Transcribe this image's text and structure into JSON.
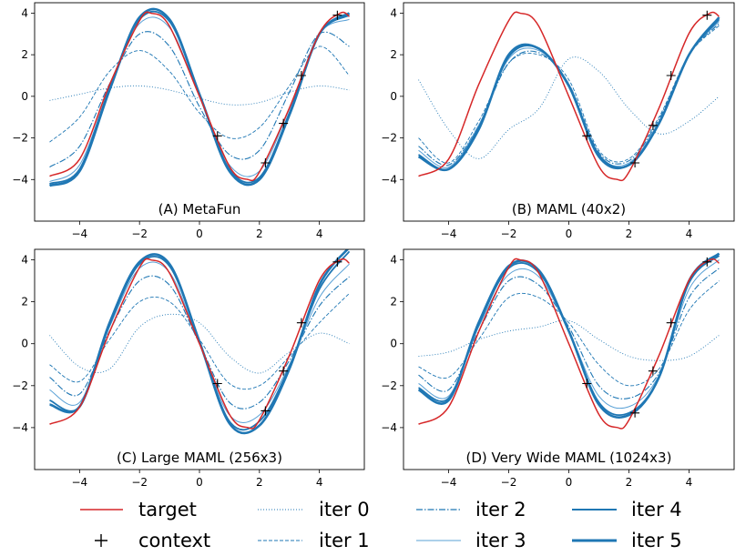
{
  "chart_data": [
    {
      "type": "line",
      "title": "(A) MetaFun",
      "xlim": [
        -5.5,
        5.5
      ],
      "ylim": [
        -6,
        4.5
      ],
      "xticks": [
        -4,
        -2,
        0,
        2,
        4
      ],
      "yticks": [
        -4,
        -2,
        0,
        2,
        4
      ],
      "series": [
        {
          "name": "target",
          "x": [
            -5,
            -4,
            -3,
            -2,
            -1.6,
            -1,
            0,
            1,
            1.6,
            2,
            3,
            4,
            4.7,
            5
          ],
          "y": [
            -3.84,
            -3.02,
            0.56,
            3.64,
            3.99,
            3.37,
            0.0,
            -3.37,
            -3.99,
            -3.64,
            -0.56,
            3.03,
            4.0,
            3.84
          ]
        },
        {
          "name": "iter 0",
          "x": [
            -5,
            -4,
            -3,
            -2,
            -1,
            0,
            1,
            2,
            3,
            4,
            5
          ],
          "y": [
            -0.2,
            0.1,
            0.4,
            0.5,
            0.3,
            -0.1,
            -0.4,
            -0.3,
            0.2,
            0.5,
            0.3
          ]
        },
        {
          "name": "iter 1",
          "x": [
            -5,
            -4,
            -3,
            -2,
            -1,
            0,
            1,
            2,
            3,
            4,
            5
          ],
          "y": [
            -2.2,
            -1.0,
            1.2,
            2.2,
            1.2,
            -0.8,
            -2.0,
            -1.5,
            0.5,
            2.4,
            1.0
          ]
        },
        {
          "name": "iter 2",
          "x": [
            -5,
            -4,
            -3,
            -2,
            -1,
            0,
            1,
            2,
            3,
            4,
            5
          ],
          "y": [
            -3.4,
            -2.4,
            0.6,
            3.0,
            2.4,
            -0.5,
            -2.8,
            -2.6,
            0.2,
            3.0,
            2.4
          ]
        },
        {
          "name": "iter 3",
          "x": [
            -5,
            -4,
            -3,
            -2,
            -1,
            0,
            1,
            2,
            3,
            4,
            5
          ],
          "y": [
            -4.1,
            -3.3,
            0.4,
            3.5,
            3.3,
            0.0,
            -3.3,
            -3.6,
            -0.6,
            3.0,
            3.7
          ]
        },
        {
          "name": "iter 4",
          "x": [
            -5,
            -4,
            -3,
            -2,
            -1,
            0,
            1,
            2,
            3,
            4,
            5
          ],
          "y": [
            -4.2,
            -3.5,
            0.4,
            3.7,
            3.6,
            0.1,
            -3.5,
            -3.9,
            -0.8,
            3.0,
            3.9
          ]
        },
        {
          "name": "iter 5",
          "x": [
            -5,
            -4,
            -3,
            -2,
            -1,
            0,
            1,
            2,
            3,
            4,
            5
          ],
          "y": [
            -4.3,
            -3.6,
            0.3,
            3.8,
            3.7,
            0.1,
            -3.6,
            -4.0,
            -0.9,
            3.0,
            4.0
          ]
        }
      ],
      "context": {
        "x": [
          0.6,
          2.2,
          2.8,
          3.4,
          4.6
        ],
        "y": [
          -1.9,
          -3.2,
          -1.3,
          1.0,
          3.9
        ]
      }
    },
    {
      "type": "line",
      "title": "(B) MAML (40x2)",
      "xlim": [
        -5.5,
        5.5
      ],
      "ylim": [
        -6,
        4.5
      ],
      "xticks": [
        -4,
        -2,
        0,
        2,
        4
      ],
      "yticks": [
        -4,
        -2,
        0,
        2,
        4
      ],
      "series": [
        {
          "name": "target",
          "x": [
            -5,
            -4,
            -3,
            -2,
            -1.6,
            -1,
            0,
            1,
            1.6,
            2,
            3,
            4,
            4.7,
            5
          ],
          "y": [
            -3.84,
            -3.02,
            0.56,
            3.64,
            3.99,
            3.37,
            0.0,
            -3.37,
            -3.99,
            -3.64,
            -0.56,
            3.03,
            4.0,
            3.84
          ]
        },
        {
          "name": "iter 0",
          "x": [
            -5,
            -4,
            -3,
            -2,
            -1,
            0,
            1,
            2,
            3,
            4,
            5
          ],
          "y": [
            0.8,
            -1.6,
            -3.0,
            -1.6,
            -0.6,
            1.8,
            1.2,
            -0.6,
            -1.8,
            -1.2,
            0.0
          ]
        },
        {
          "name": "iter 1",
          "x": [
            -5,
            -4,
            -3,
            -2,
            -1,
            0,
            1,
            2,
            3,
            4,
            5
          ],
          "y": [
            -2.0,
            -3.2,
            -1.2,
            1.6,
            2.0,
            0.8,
            -2.6,
            -3.0,
            -1.0,
            2.0,
            3.4
          ]
        },
        {
          "name": "iter 2",
          "x": [
            -5,
            -4,
            -3,
            -2,
            -1,
            0,
            1,
            2,
            3,
            4,
            5
          ],
          "y": [
            -2.4,
            -3.3,
            -1.4,
            1.6,
            2.1,
            0.6,
            -2.7,
            -3.1,
            -1.1,
            2.0,
            3.5
          ]
        },
        {
          "name": "iter 3",
          "x": [
            -5,
            -4,
            -3,
            -2,
            -1,
            0,
            1,
            2,
            3,
            4,
            5
          ],
          "y": [
            -2.6,
            -3.4,
            -1.4,
            1.8,
            2.2,
            0.6,
            -2.8,
            -3.2,
            -1.2,
            2.0,
            3.6
          ]
        },
        {
          "name": "iter 4",
          "x": [
            -5,
            -4,
            -3,
            -2,
            -1,
            0,
            1,
            2,
            3,
            4,
            5
          ],
          "y": [
            -2.8,
            -3.5,
            -1.5,
            1.9,
            2.3,
            0.5,
            -2.8,
            -3.3,
            -1.3,
            2.0,
            3.7
          ]
        },
        {
          "name": "iter 5",
          "x": [
            -5,
            -4,
            -3,
            -2,
            -1,
            0,
            1,
            2,
            3,
            4,
            5
          ],
          "y": [
            -2.9,
            -3.5,
            -1.6,
            2.0,
            2.3,
            0.5,
            -2.9,
            -3.3,
            -1.3,
            2.0,
            3.8
          ]
        }
      ],
      "context": {
        "x": [
          0.6,
          2.2,
          2.8,
          3.4,
          4.6
        ],
        "y": [
          -1.9,
          -3.2,
          -1.4,
          1.0,
          3.9
        ]
      }
    },
    {
      "type": "line",
      "title": "(C) Large MAML (256x3)",
      "xlim": [
        -5.5,
        5.5
      ],
      "ylim": [
        -6,
        4.5
      ],
      "xticks": [
        -4,
        -2,
        0,
        2,
        4
      ],
      "yticks": [
        -4,
        -2,
        0,
        2,
        4
      ],
      "series": [
        {
          "name": "target",
          "x": [
            -5,
            -4,
            -3,
            -2,
            -1.6,
            -1,
            0,
            1,
            1.6,
            2,
            3,
            4,
            4.7,
            5
          ],
          "y": [
            -3.84,
            -3.02,
            0.56,
            3.64,
            3.99,
            3.37,
            0.0,
            -3.37,
            -3.99,
            -3.64,
            -0.56,
            3.03,
            4.0,
            3.84
          ]
        },
        {
          "name": "iter 0",
          "x": [
            -5,
            -4,
            -3,
            -2,
            -1,
            0,
            1,
            2,
            3,
            4,
            5
          ],
          "y": [
            0.4,
            -1.1,
            -1.2,
            0.8,
            1.4,
            1.0,
            -0.6,
            -1.4,
            -0.4,
            0.5,
            0.0
          ]
        },
        {
          "name": "iter 1",
          "x": [
            -5,
            -4,
            -3,
            -2,
            -1,
            0,
            1,
            2,
            3,
            4,
            5
          ],
          "y": [
            -1.0,
            -1.8,
            0.2,
            2.0,
            2.0,
            0.2,
            -1.9,
            -2.0,
            -0.6,
            1.0,
            2.4
          ]
        },
        {
          "name": "iter 2",
          "x": [
            -5,
            -4,
            -3,
            -2,
            -1,
            0,
            1,
            2,
            3,
            4,
            5
          ],
          "y": [
            -1.6,
            -2.4,
            0.6,
            3.0,
            2.8,
            0.0,
            -2.8,
            -2.8,
            -0.8,
            1.8,
            3.2
          ]
        },
        {
          "name": "iter 3",
          "x": [
            -5,
            -4,
            -3,
            -2,
            -1,
            0,
            1,
            2,
            3,
            4,
            5
          ],
          "y": [
            -2.2,
            -2.8,
            0.8,
            3.6,
            3.4,
            0.0,
            -3.4,
            -3.4,
            -1.0,
            2.2,
            3.8
          ]
        },
        {
          "name": "iter 4",
          "x": [
            -5,
            -4,
            -3,
            -2,
            -1,
            0,
            1,
            2,
            3,
            4,
            5
          ],
          "y": [
            -2.7,
            -3.0,
            0.9,
            3.8,
            3.7,
            0.1,
            -3.7,
            -3.7,
            -1.1,
            2.6,
            4.4
          ]
        },
        {
          "name": "iter 5",
          "x": [
            -5,
            -4,
            -3,
            -2,
            -1,
            0,
            1,
            2,
            3,
            4,
            5
          ],
          "y": [
            -2.9,
            -3.0,
            1.0,
            3.9,
            3.8,
            0.1,
            -3.8,
            -3.9,
            -1.2,
            2.8,
            4.6
          ]
        }
      ],
      "context": {
        "x": [
          0.6,
          2.2,
          2.8,
          3.4,
          4.6
        ],
        "y": [
          -1.9,
          -3.2,
          -1.3,
          1.0,
          3.9
        ]
      }
    },
    {
      "type": "line",
      "title": "(D) Very Wide MAML (1024x3)",
      "xlim": [
        -5.5,
        5.5
      ],
      "ylim": [
        -6,
        4.5
      ],
      "xticks": [
        -4,
        -2,
        0,
        2,
        4
      ],
      "yticks": [
        -4,
        -2,
        0,
        2,
        4
      ],
      "series": [
        {
          "name": "target",
          "x": [
            -5,
            -4,
            -3,
            -2,
            -1.6,
            -1,
            0,
            1,
            1.6,
            2,
            3,
            4,
            4.7,
            5
          ],
          "y": [
            -3.84,
            -3.02,
            0.56,
            3.64,
            3.99,
            3.37,
            0.0,
            -3.37,
            -3.99,
            -3.64,
            -0.56,
            3.03,
            4.0,
            3.84
          ]
        },
        {
          "name": "iter 0",
          "x": [
            -5,
            -4,
            -3,
            -2,
            -1,
            0,
            1,
            2,
            3,
            4,
            5
          ],
          "y": [
            -0.6,
            -0.4,
            0.2,
            0.6,
            0.8,
            1.1,
            0.2,
            -0.6,
            -0.8,
            -0.6,
            0.4
          ]
        },
        {
          "name": "iter 1",
          "x": [
            -5,
            -4,
            -3,
            -2,
            -1,
            0,
            1,
            2,
            3,
            4,
            5
          ],
          "y": [
            -1.1,
            -1.6,
            0.2,
            2.2,
            2.2,
            1.0,
            -1.0,
            -2.0,
            -1.2,
            1.6,
            3.0
          ]
        },
        {
          "name": "iter 2",
          "x": [
            -5,
            -4,
            -3,
            -2,
            -1,
            0,
            1,
            2,
            3,
            4,
            5
          ],
          "y": [
            -1.5,
            -2.2,
            0.6,
            3.0,
            2.8,
            0.8,
            -2.0,
            -2.6,
            -1.4,
            2.2,
            3.6
          ]
        },
        {
          "name": "iter 3",
          "x": [
            -5,
            -4,
            -3,
            -2,
            -1,
            0,
            1,
            2,
            3,
            4,
            5
          ],
          "y": [
            -1.9,
            -2.5,
            0.8,
            3.3,
            3.2,
            0.6,
            -2.5,
            -3.0,
            -1.5,
            2.6,
            4.0
          ]
        },
        {
          "name": "iter 4",
          "x": [
            -5,
            -4,
            -3,
            -2,
            -1,
            0,
            1,
            2,
            3,
            4,
            5
          ],
          "y": [
            -2.1,
            -2.6,
            0.9,
            3.6,
            3.4,
            0.6,
            -2.8,
            -3.3,
            -1.6,
            2.9,
            4.2
          ]
        },
        {
          "name": "iter 5",
          "x": [
            -5,
            -4,
            -3,
            -2,
            -1,
            0,
            1,
            2,
            3,
            4,
            5
          ],
          "y": [
            -2.2,
            -2.7,
            1.0,
            3.7,
            3.5,
            0.6,
            -2.9,
            -3.4,
            -1.6,
            3.0,
            4.3
          ]
        }
      ],
      "context": {
        "x": [
          0.6,
          2.2,
          2.8,
          3.4,
          4.6
        ],
        "y": [
          -1.9,
          -3.3,
          -1.3,
          1.0,
          3.9
        ]
      }
    }
  ],
  "legend": {
    "position": "bottom",
    "items": [
      {
        "label": "target",
        "color": "#d62728",
        "style": "solid-thin"
      },
      {
        "label": "context",
        "color": "#000000",
        "style": "plus-marker"
      },
      {
        "label": "iter 0",
        "color": "#1f77b4",
        "style": "dotted"
      },
      {
        "label": "iter 1",
        "color": "#1f77b4",
        "style": "dashed"
      },
      {
        "label": "iter 2",
        "color": "#1f77b4",
        "style": "dash-dot"
      },
      {
        "label": "iter 3",
        "color": "#5aa1d6",
        "style": "solid-thin"
      },
      {
        "label": "iter 4",
        "color": "#1f77b4",
        "style": "solid"
      },
      {
        "label": "iter 5",
        "color": "#1f77b4",
        "style": "solid-thick"
      }
    ]
  },
  "colors": {
    "target": "#d62728",
    "iter": "#1f77b4",
    "context": "#000000"
  }
}
